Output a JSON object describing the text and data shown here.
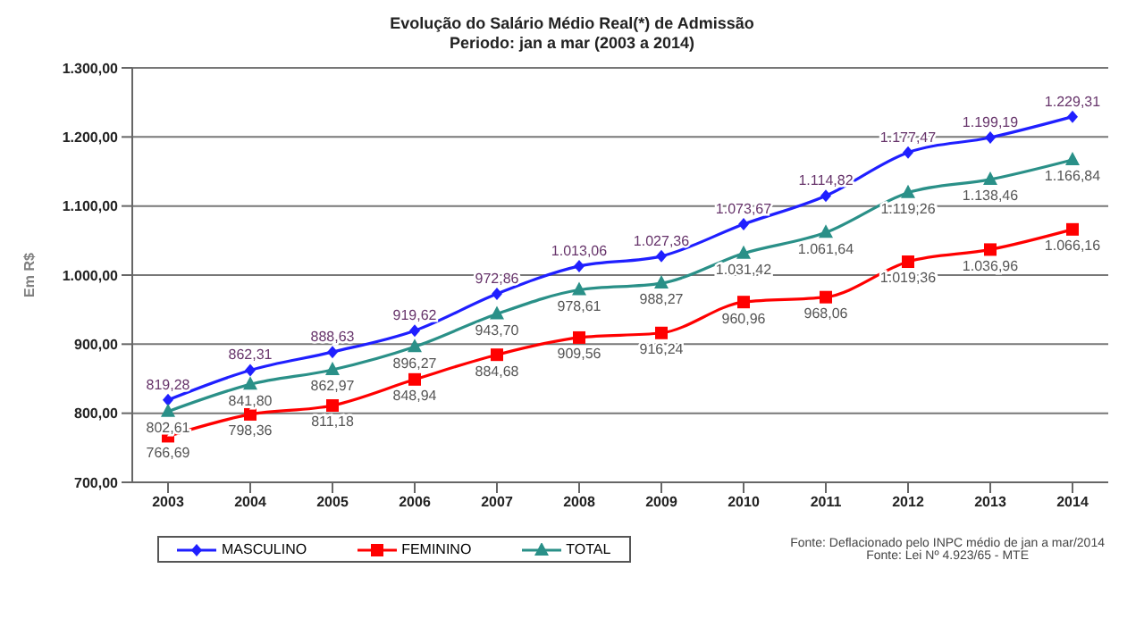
{
  "chart_data": {
    "type": "line",
    "title": "Evolução do Salário Médio Real(*) de Admissão",
    "subtitle": "Periodo: jan a mar (2003 a 2014)",
    "ylabel": "Em R$",
    "categories": [
      "2003",
      "2004",
      "2005",
      "2006",
      "2007",
      "2008",
      "2009",
      "2010",
      "2011",
      "2012",
      "2013",
      "2014"
    ],
    "series": [
      {
        "name": "MASCULINO",
        "color": "#1f1fff",
        "marker": "diamond",
        "values": [
          819.28,
          862.31,
          888.63,
          919.62,
          972.86,
          1013.06,
          1027.36,
          1073.67,
          1114.82,
          1177.47,
          1199.19,
          1229.31
        ],
        "value_labels": [
          "819,28",
          "862,31",
          "888,63",
          "919,62",
          "972,86",
          "1.013,06",
          "1.027,36",
          "1.073,67",
          "1.114,82",
          "1.177,47",
          "1.199,19",
          "1.229,31"
        ]
      },
      {
        "name": "FEMININO",
        "color": "#ff0000",
        "marker": "square",
        "values": [
          766.69,
          798.36,
          811.18,
          848.94,
          884.68,
          909.56,
          916.24,
          960.96,
          968.06,
          1019.36,
          1036.96,
          1066.16
        ],
        "value_labels": [
          "766,69",
          "798,36",
          "811,18",
          "848,94",
          "884,68",
          "909,56",
          "916,24",
          "960,96",
          "968,06",
          "1.019,36",
          "1.036,96",
          "1.066,16"
        ]
      },
      {
        "name": "TOTAL",
        "color": "#2a9088",
        "marker": "triangle",
        "values": [
          802.61,
          841.8,
          862.97,
          896.27,
          943.7,
          978.61,
          988.27,
          1031.42,
          1061.64,
          1119.26,
          1138.46,
          1166.84
        ],
        "value_labels": [
          "802,61",
          "841,80",
          "862,97",
          "896,27",
          "943,70",
          "978,61",
          "988,27",
          "1.031,42",
          "1.061,64",
          "1.119,26",
          "1.138,46",
          "1.166,84"
        ]
      }
    ],
    "ylim": [
      700,
      1300
    ],
    "yticks": [
      {
        "value": 700,
        "label": "700,00"
      },
      {
        "value": 800,
        "label": "800,00"
      },
      {
        "value": 900,
        "label": "900,00"
      },
      {
        "value": 1000,
        "label": "1.000,00"
      },
      {
        "value": 1100,
        "label": "1.100,00"
      },
      {
        "value": 1200,
        "label": "1.200,00"
      },
      {
        "value": 1300,
        "label": "1.300,00"
      }
    ],
    "grid": "y",
    "legend": "bottom",
    "annotations": [
      "Fonte: Deflacionado pelo INPC médio de jan a mar/2014",
      "Fonte: Lei Nº 4.923/65 - MTE"
    ]
  }
}
